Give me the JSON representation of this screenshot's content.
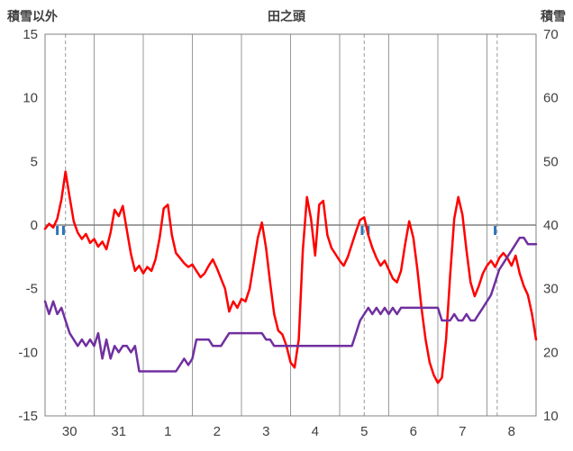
{
  "header": {
    "left_axis_title": "積雪以外",
    "title": "田之頭",
    "right_axis_title": "積雪"
  },
  "chart_data": {
    "type": "line",
    "title": "田之頭",
    "left_axis": {
      "label": "積雪以外",
      "ticks": [
        15,
        10,
        5,
        0,
        -5,
        -10,
        -15
      ],
      "range": [
        -15,
        15
      ]
    },
    "right_axis": {
      "label": "積雪",
      "ticks": [
        70,
        60,
        50,
        40,
        30,
        20,
        10
      ],
      "range": [
        10,
        70
      ]
    },
    "x_axis": {
      "day_labels": [
        "30",
        "31",
        "1",
        "2",
        "3",
        "4",
        "5",
        "6",
        "7",
        "8"
      ],
      "hours_total": 240,
      "sample_interval_hours": 2
    },
    "series": [
      {
        "name": "積雪以外",
        "axis": "left",
        "color": "#FF0000",
        "values": [
          -0.3,
          0.1,
          -0.2,
          0.5,
          2.0,
          4.2,
          2.2,
          0.3,
          -0.6,
          -1.1,
          -0.7,
          -1.4,
          -1.1,
          -1.7,
          -1.3,
          -1.9,
          -0.6,
          1.2,
          0.7,
          1.5,
          -0.4,
          -2.3,
          -3.6,
          -3.2,
          -3.8,
          -3.3,
          -3.6,
          -2.7,
          -1.0,
          1.3,
          1.6,
          -0.8,
          -2.2,
          -2.6,
          -3.0,
          -3.3,
          -3.1,
          -3.6,
          -4.1,
          -3.8,
          -3.2,
          -2.7,
          -3.4,
          -4.2,
          -5.0,
          -6.8,
          -6.0,
          -6.5,
          -5.8,
          -6.0,
          -5.0,
          -3.0,
          -1.0,
          0.2,
          -1.8,
          -4.5,
          -7.0,
          -8.3,
          -8.6,
          -9.5,
          -10.8,
          -11.2,
          -9.0,
          -2.0,
          2.2,
          0.5,
          -2.4,
          1.6,
          1.9,
          -0.8,
          -1.8,
          -2.3,
          -2.8,
          -3.2,
          -2.5,
          -1.5,
          -0.5,
          0.4,
          0.6,
          -0.8,
          -1.8,
          -2.6,
          -3.2,
          -2.8,
          -3.5,
          -4.2,
          -4.5,
          -3.6,
          -1.5,
          0.3,
          -1.0,
          -3.5,
          -6.5,
          -9.0,
          -10.8,
          -11.8,
          -12.4,
          -12.0,
          -9.0,
          -4.0,
          0.5,
          2.2,
          0.8,
          -2.0,
          -4.5,
          -5.6,
          -4.8,
          -3.8,
          -3.2,
          -2.8,
          -3.3,
          -2.6,
          -2.2,
          -2.6,
          -3.2,
          -2.4,
          -3.8,
          -4.8,
          -5.5,
          -7.0,
          -9.0
        ]
      },
      {
        "name": "積雪",
        "axis": "right",
        "color": "#7030A0",
        "values": [
          28,
          26,
          28,
          26,
          27,
          25,
          23,
          22,
          21,
          22,
          21,
          22,
          21,
          23,
          19,
          22,
          19,
          21,
          20,
          21,
          21,
          20,
          21,
          17,
          17,
          17,
          17,
          17,
          17,
          17,
          17,
          17,
          17,
          18,
          19,
          18,
          19,
          22,
          22,
          22,
          22,
          21,
          21,
          21,
          22,
          23,
          23,
          23,
          23,
          23,
          23,
          23,
          23,
          23,
          22,
          22,
          21,
          21,
          21,
          21,
          21,
          21,
          21,
          21,
          21,
          21,
          21,
          21,
          21,
          21,
          21,
          21,
          21,
          21,
          21,
          21,
          23,
          25,
          26,
          27,
          26,
          27,
          26,
          27,
          26,
          27,
          26,
          27,
          27,
          27,
          27,
          27,
          27,
          27,
          27,
          27,
          27,
          25,
          25,
          25,
          26,
          25,
          25,
          26,
          25,
          25,
          26,
          27,
          28,
          29,
          31,
          33,
          34,
          35,
          36,
          37,
          38,
          38,
          37,
          37,
          37
        ]
      }
    ],
    "precip_marks": {
      "color": "#2E75B6",
      "hours": [
        6,
        9,
        155,
        158,
        220
      ]
    },
    "dashed_vlines_hours": [
      10,
      156,
      221
    ],
    "colors": {
      "grid": "#999999",
      "zero_line": "#808080",
      "border": "#808080",
      "axis_text": "#404040"
    }
  }
}
